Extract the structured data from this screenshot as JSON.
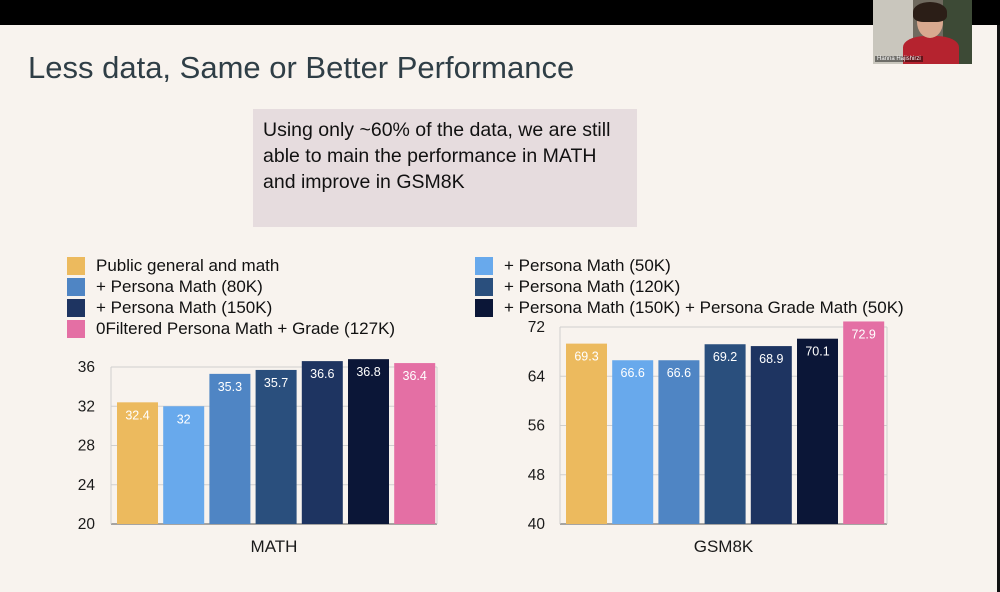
{
  "slide": {
    "title": "Less data, Same or Better Performance",
    "callout": "Using only ~60% of the data, we are still able to main the performance in MATH and improve in GSM8K"
  },
  "webcam": {
    "name": "Hanna Hajishirzi"
  },
  "legend_left": [
    {
      "label": "Public general and math",
      "color": "#ecba5e"
    },
    {
      "label": "+ Persona Math (80K)",
      "color": "#4f85c4"
    },
    {
      "label": "+ Persona Math (150K)",
      "color": "#1e3461"
    },
    {
      "label": "0Filtered Persona Math + Grade (127K)",
      "color": "#e46fa4"
    }
  ],
  "legend_right": [
    {
      "label": "+ Persona Math (50K)",
      "color": "#68a9ec"
    },
    {
      "label": "+ Persona Math (120K)",
      "color": "#2a4f7d"
    },
    {
      "label": "+ Persona Math (150K) + Persona Grade Math (50K)",
      "color": "#0b1637"
    }
  ],
  "chart_data": [
    {
      "type": "bar",
      "xlabel": "MATH",
      "ylim": [
        20,
        36
      ],
      "yticks": [
        20,
        24,
        28,
        32,
        36
      ],
      "values": [
        32.4,
        32,
        35.3,
        35.7,
        36.6,
        36.8,
        36.4
      ],
      "labels": [
        "32.4",
        "32",
        "35.3",
        "35.7",
        "36.6",
        "36.8",
        "36.4"
      ],
      "colors": [
        "#ecba5e",
        "#68a9ec",
        "#4f85c4",
        "#2a4f7d",
        "#1e3461",
        "#0b1637",
        "#e46fa4"
      ]
    },
    {
      "type": "bar",
      "xlabel": "GSM8K",
      "ylim": [
        40,
        72
      ],
      "yticks": [
        40,
        48,
        56,
        64,
        72
      ],
      "values": [
        69.3,
        66.6,
        66.6,
        69.2,
        68.9,
        70.1,
        72.9
      ],
      "labels": [
        "69.3",
        "66.6",
        "66.6",
        "69.2",
        "68.9",
        "70.1",
        "72.9"
      ],
      "colors": [
        "#ecba5e",
        "#68a9ec",
        "#4f85c4",
        "#2a4f7d",
        "#1e3461",
        "#0b1637",
        "#e46fa4"
      ]
    }
  ]
}
